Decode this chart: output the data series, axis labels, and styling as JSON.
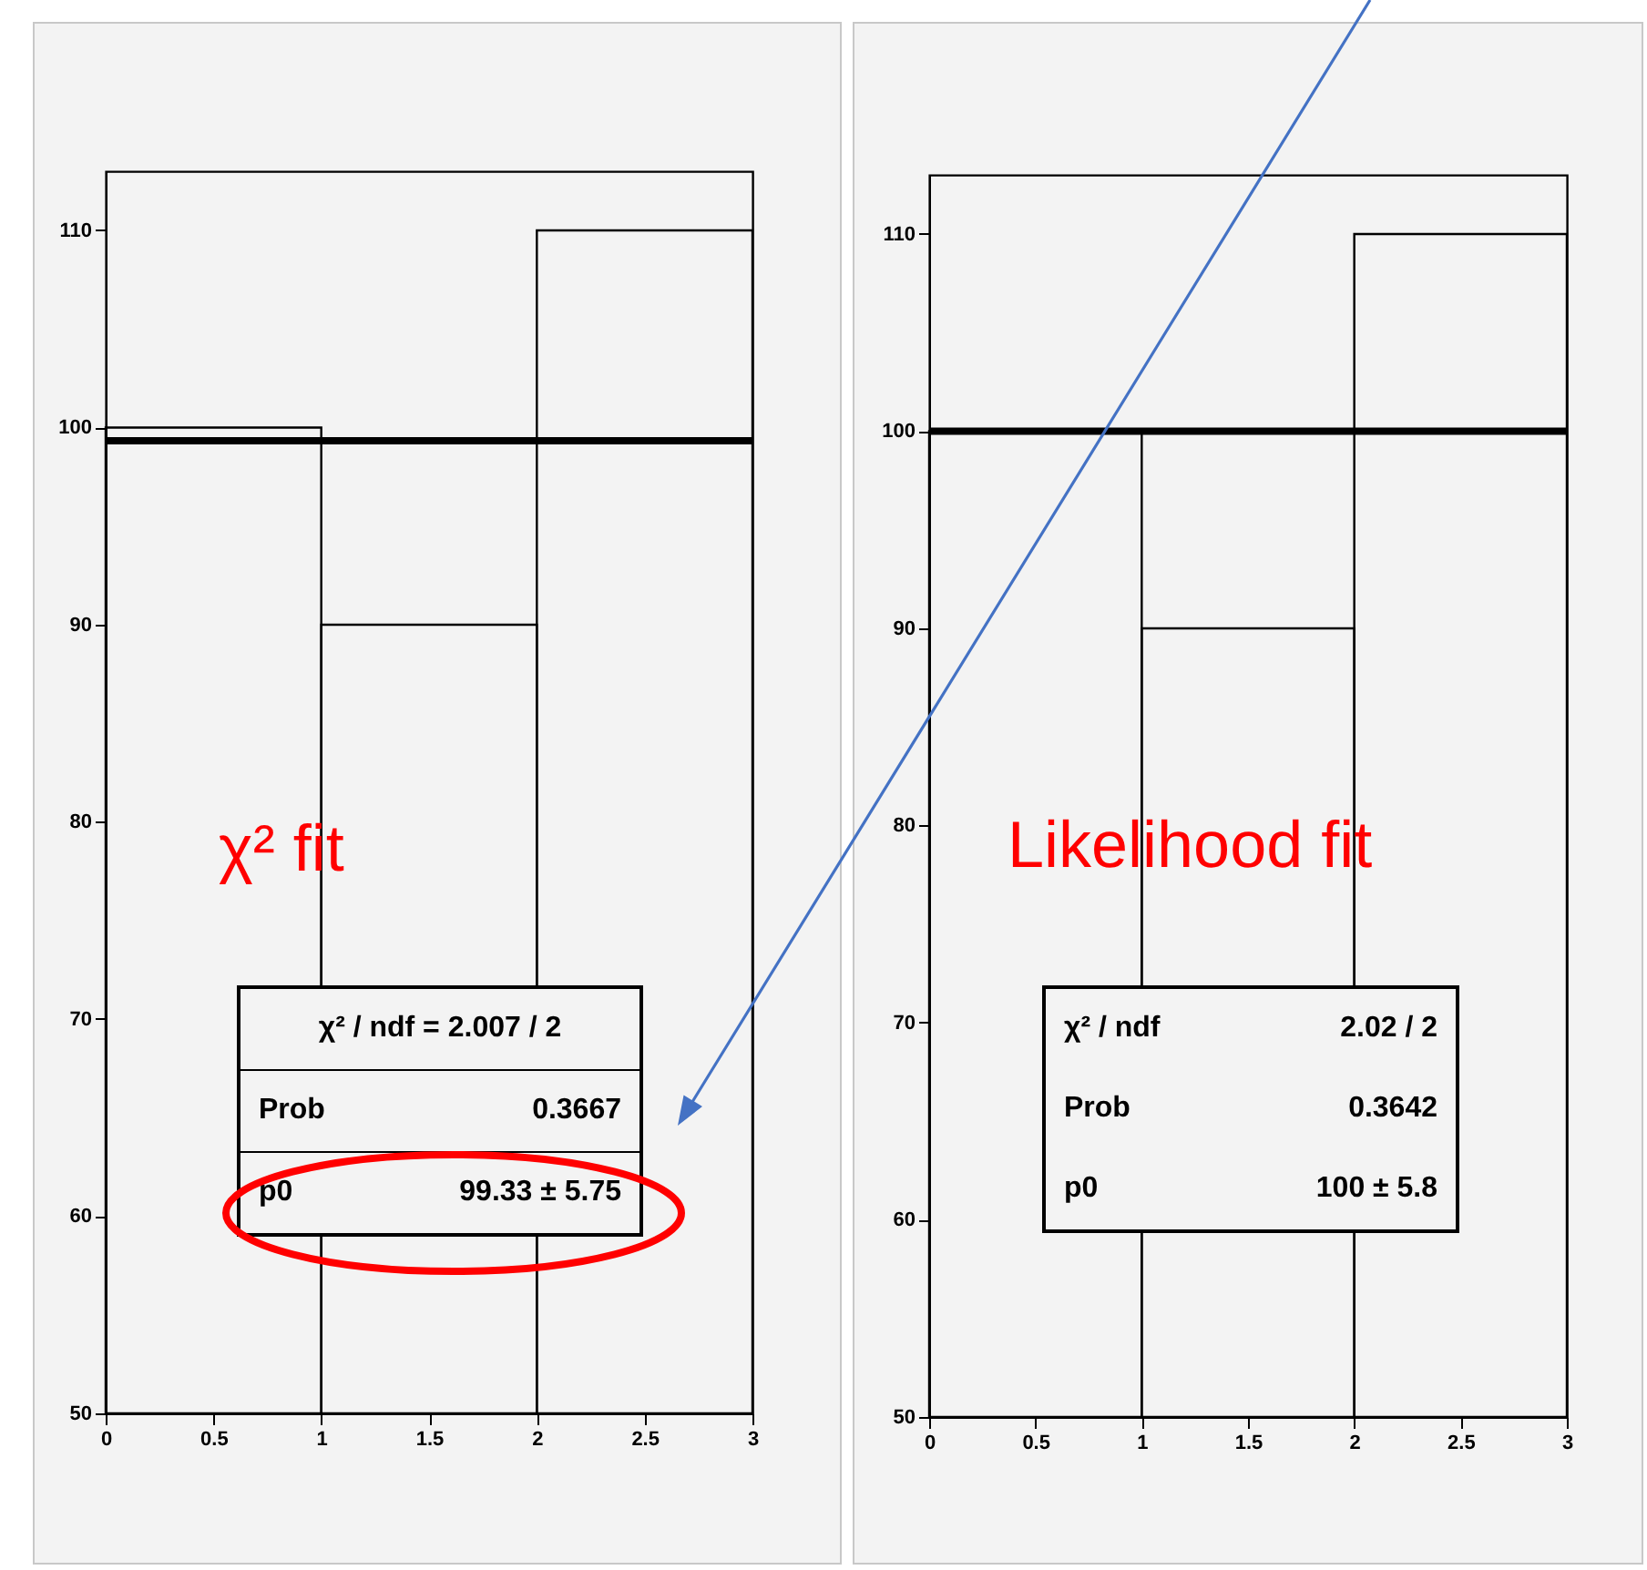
{
  "chart_data": [
    {
      "type": "histogram",
      "color": "#000000",
      "bins": [
        0,
        1,
        2,
        3
      ],
      "values": [
        100,
        90,
        110
      ],
      "xlim": [
        0,
        3
      ],
      "ylim": [
        50,
        113
      ],
      "xticks": [
        0,
        0.5,
        1,
        1.5,
        2,
        2.5,
        3
      ],
      "yticks": [
        50,
        60,
        70,
        80,
        90,
        100,
        110
      ],
      "ref_lines": [
        {
          "axis": "y",
          "value": 99.33,
          "color": "#000000"
        }
      ],
      "annotations": [
        "χ² fit",
        "χ² / ndf = 2.007 / 2",
        "Prob",
        "0.3667",
        "p0",
        "99.33 ± 5.75"
      ]
    },
    {
      "type": "histogram",
      "color": "#000000",
      "bins": [
        0,
        1,
        2,
        3
      ],
      "values": [
        100,
        90,
        110
      ],
      "xlim": [
        0,
        3
      ],
      "ylim": [
        50,
        113
      ],
      "xticks": [
        0,
        0.5,
        1,
        1.5,
        2,
        2.5,
        3
      ],
      "yticks": [
        50,
        60,
        70,
        80,
        90,
        100,
        110
      ],
      "ref_lines": [
        {
          "axis": "y",
          "value": 100,
          "color": "#000000"
        }
      ],
      "annotations": [
        "Likelihood fit",
        "χ² / ndf",
        "2.02 / 2",
        "Prob",
        "0.3642",
        "p0",
        "100 ± 5.8"
      ]
    }
  ]
}
